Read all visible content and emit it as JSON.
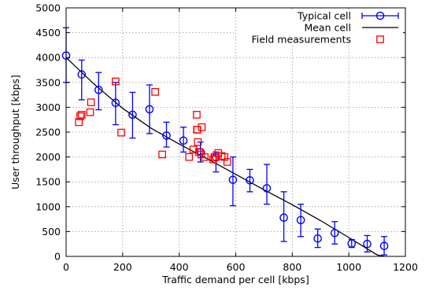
{
  "chart_data": {
    "type": "scatter",
    "xlabel": "Traffic demand per cell [kbps]",
    "ylabel": "User throughput [kbps]",
    "xlim": [
      0,
      1200
    ],
    "ylim": [
      0,
      5000
    ],
    "xticks": [
      0,
      200,
      400,
      600,
      800,
      1000,
      1200
    ],
    "yticks": [
      0,
      500,
      1000,
      1500,
      2000,
      2500,
      3000,
      3500,
      4000,
      4500,
      5000
    ],
    "grid": true,
    "legend_position": "top-right",
    "colors": {
      "typical": "#0000ff",
      "mean": "#000000",
      "field": "#ff0000"
    },
    "series": [
      {
        "name": "Typical cell",
        "style": "circle-errorbar",
        "points": [
          {
            "x": 0,
            "y": 4040,
            "lo": 3500,
            "hi": 4600
          },
          {
            "x": 55,
            "y": 3660,
            "lo": 3150,
            "hi": 3950
          },
          {
            "x": 115,
            "y": 3350,
            "lo": 2950,
            "hi": 3700
          },
          {
            "x": 175,
            "y": 3090,
            "lo": 2650,
            "hi": 3500
          },
          {
            "x": 235,
            "y": 2850,
            "lo": 2380,
            "hi": 3300
          },
          {
            "x": 295,
            "y": 2960,
            "lo": 2470,
            "hi": 3450
          },
          {
            "x": 355,
            "y": 2430,
            "lo": 2200,
            "hi": 2700
          },
          {
            "x": 415,
            "y": 2330,
            "lo": 2100,
            "hi": 2600
          },
          {
            "x": 475,
            "y": 2100,
            "lo": 1900,
            "hi": 2300
          },
          {
            "x": 530,
            "y": 1990,
            "lo": 1700,
            "hi": 2100
          },
          {
            "x": 590,
            "y": 1540,
            "lo": 1020,
            "hi": 2000
          },
          {
            "x": 650,
            "y": 1530,
            "lo": 1300,
            "hi": 1750
          },
          {
            "x": 710,
            "y": 1370,
            "lo": 1050,
            "hi": 1850
          },
          {
            "x": 770,
            "y": 780,
            "lo": 300,
            "hi": 1300
          },
          {
            "x": 830,
            "y": 730,
            "lo": 400,
            "hi": 1050
          },
          {
            "x": 890,
            "y": 360,
            "lo": 180,
            "hi": 550
          },
          {
            "x": 950,
            "y": 470,
            "lo": 250,
            "hi": 700
          },
          {
            "x": 1010,
            "y": 260,
            "lo": 180,
            "hi": 340
          },
          {
            "x": 1065,
            "y": 250,
            "lo": 90,
            "hi": 420
          },
          {
            "x": 1125,
            "y": 210,
            "lo": 30,
            "hi": 400
          }
        ]
      },
      {
        "name": "Mean cell",
        "style": "line",
        "x": [
          0,
          100,
          200,
          300,
          400,
          500,
          600,
          700,
          800,
          900,
          1000,
          1100,
          1125
        ],
        "y": [
          4000,
          3460,
          2980,
          2580,
          2260,
          1960,
          1650,
          1340,
          1040,
          720,
          380,
          30,
          0
        ]
      },
      {
        "name": "Field measurements",
        "style": "square",
        "x": [
          45,
          50,
          55,
          85,
          88,
          175,
          195,
          315,
          340,
          435,
          450,
          462,
          463,
          464,
          466,
          470,
          478,
          480,
          490,
          520,
          525,
          530,
          538,
          550,
          560,
          570
        ],
        "y": [
          2700,
          2820,
          2850,
          2900,
          3100,
          3520,
          2490,
          3310,
          2050,
          2000,
          2150,
          2850,
          2550,
          2550,
          2300,
          2100,
          2050,
          2600,
          2000,
          1950,
          2000,
          2000,
          2080,
          2020,
          2000,
          1900
        ]
      }
    ]
  }
}
